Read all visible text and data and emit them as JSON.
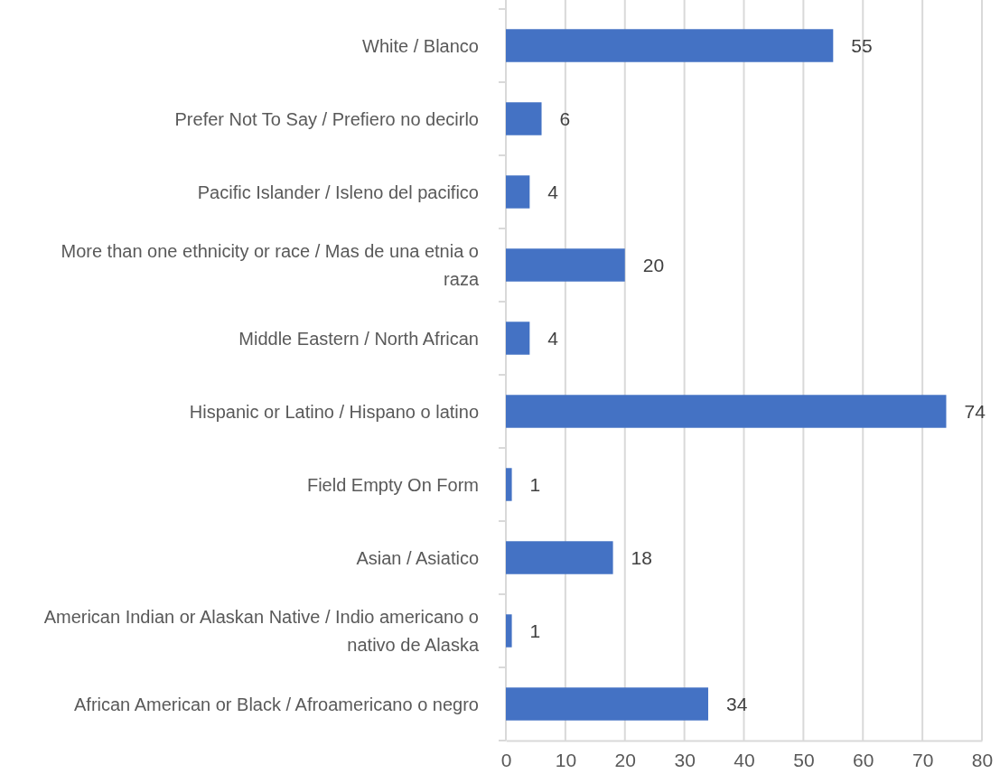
{
  "chart_data": {
    "type": "bar",
    "orientation": "horizontal",
    "categories": [
      "White / Blanco",
      "Prefer Not To Say / Prefiero no decirlo",
      "Pacific Islander / Isleno del pacifico",
      "More than one ethnicity or race / Mas de una etnia o raza",
      "Middle Eastern / North African",
      "Hispanic or Latino / Hispano o latino",
      "Field Empty On Form",
      "Asian / Asiatico",
      "American Indian or Alaskan Native / Indio americano o nativo de Alaska",
      "African American or Black / Afroamericano o negro"
    ],
    "values": [
      55,
      6,
      4,
      20,
      4,
      74,
      1,
      18,
      1,
      34
    ],
    "color": "#4472c4",
    "xlim": [
      0,
      80
    ],
    "xticks": [
      0,
      10,
      20,
      30,
      40,
      50,
      60,
      70,
      80
    ],
    "grid": "x",
    "data_labels": true
  }
}
